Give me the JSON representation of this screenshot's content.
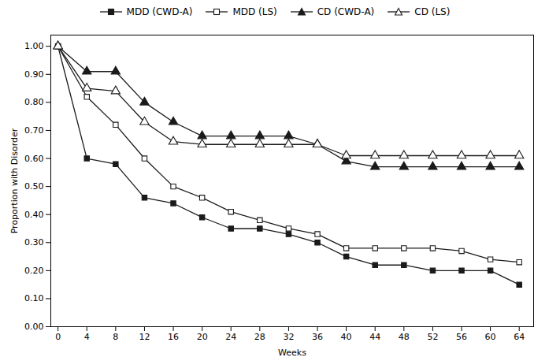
{
  "chart_data": {
    "type": "line",
    "x": [
      0,
      4,
      8,
      12,
      16,
      20,
      24,
      28,
      32,
      36,
      40,
      44,
      48,
      52,
      56,
      60,
      64
    ],
    "series": [
      {
        "name": "MDD (CWD-A)",
        "color": "#1a1a1a",
        "marker": "square",
        "line_style": "solid",
        "values": [
          1.0,
          0.6,
          0.58,
          0.46,
          0.44,
          0.39,
          0.35,
          0.35,
          0.33,
          0.3,
          0.25,
          0.22,
          0.22,
          0.2,
          0.2,
          0.2,
          0.15
        ]
      },
      {
        "name": "MDD (LS)",
        "color": "#1a1a1a",
        "marker": "square-open",
        "line_style": "solid",
        "values": [
          1.0,
          0.82,
          0.72,
          0.6,
          0.5,
          0.46,
          0.41,
          0.38,
          0.35,
          0.33,
          0.28,
          0.28,
          0.28,
          0.28,
          0.27,
          0.24,
          0.23
        ]
      },
      {
        "name": "CD (CWD-A)",
        "color": "#1a1a1a",
        "marker": "triangle",
        "line_style": "solid",
        "values": [
          1.0,
          0.91,
          0.91,
          0.8,
          0.73,
          0.68,
          0.68,
          0.68,
          0.68,
          0.65,
          0.59,
          0.57,
          0.57,
          0.57,
          0.57,
          0.57,
          0.57
        ]
      },
      {
        "name": "CD (LS)",
        "color": "#1a1a1a",
        "marker": "triangle-open",
        "line_style": "solid",
        "values": [
          1.0,
          0.85,
          0.84,
          0.73,
          0.66,
          0.65,
          0.65,
          0.65,
          0.65,
          0.65,
          0.61,
          0.61,
          0.61,
          0.61,
          0.61,
          0.61,
          0.61
        ]
      }
    ],
    "xlabel": "Weeks",
    "ylabel": "Proportion with Disorder",
    "xlim": [
      -1,
      66
    ],
    "ylim": [
      0.0,
      1.04
    ],
    "xticks": [
      0,
      4,
      8,
      12,
      16,
      20,
      24,
      28,
      32,
      36,
      40,
      44,
      48,
      52,
      56,
      60,
      64
    ],
    "yticks": [
      {
        "value": 0.0,
        "label": "0.00"
      },
      {
        "value": 0.1,
        "label": "0.10"
      },
      {
        "value": 0.2,
        "label": "0.20"
      },
      {
        "value": 0.3,
        "label": "0.30"
      },
      {
        "value": 0.4,
        "label": "0.40"
      },
      {
        "value": 0.5,
        "label": "0.50"
      },
      {
        "value": 0.6,
        "label": "0.60"
      },
      {
        "value": 0.7,
        "label": "0.70"
      },
      {
        "value": 0.8,
        "label": "0.80"
      },
      {
        "value": 0.9,
        "label": "0.90"
      },
      {
        "value": 1.0,
        "label": "1.00"
      }
    ],
    "grid": false,
    "legend": "top"
  }
}
